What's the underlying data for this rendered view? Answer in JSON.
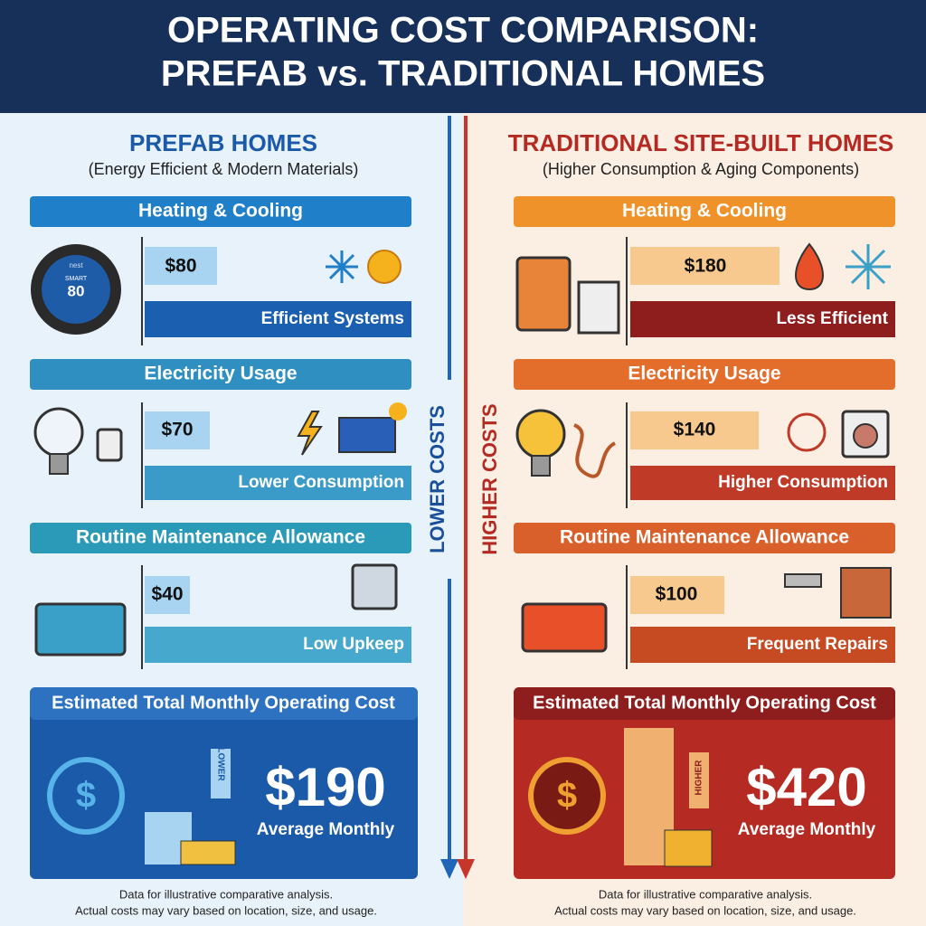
{
  "header": {
    "title_line_1": "OPERATING COST COMPARISON:",
    "title_line_2": "PREFAB vs. TRADITIONAL HOMES"
  },
  "left": {
    "title": "PREFAB HOMES",
    "subtitle": "(Energy Efficient & Modern Materials)",
    "thermostat": {
      "brand": "nest",
      "mode": "SMART",
      "reading": "80"
    },
    "sections": [
      {
        "heading": "Heating & Cooling",
        "cost": "$80",
        "note": "Efficient Systems"
      },
      {
        "heading": "Electricity Usage",
        "cost": "$70",
        "note": "Lower Consumption"
      },
      {
        "heading": "Routine Maintenance Allowance",
        "cost": "$40",
        "note": "Low Upkeep"
      }
    ],
    "total": {
      "heading": "Estimated Total Monthly Operating Cost",
      "arrow_label": "LOWER",
      "amount": "$190",
      "caption": "Average Monthly"
    },
    "footer": {
      "line_1": "Data for illustrative comparative analysis.",
      "line_2": "Actual costs may vary based on location, size, and usage."
    }
  },
  "right": {
    "title": "TRADITIONAL SITE-BUILT HOMES",
    "subtitle": "(Higher Consumption & Aging Components)",
    "sections": [
      {
        "heading": "Heating & Cooling",
        "cost": "$180",
        "note": "Less Efficient"
      },
      {
        "heading": "Electricity Usage",
        "cost": "$140",
        "note": "Higher Consumption"
      },
      {
        "heading": "Routine Maintenance Allowance",
        "cost": "$100",
        "note": "Frequent Repairs"
      }
    ],
    "total": {
      "heading": "Estimated Total Monthly Operating Cost",
      "arrow_label": "HIGHER",
      "amount": "$420",
      "caption": "Average Monthly"
    },
    "footer": {
      "line_1": "Data for illustrative comparative analysis.",
      "line_2": "Actual costs may vary based on location, size, and usage."
    }
  },
  "divider": {
    "left_label": "LOWER COSTS",
    "right_label": "HIGHER COSTS"
  }
}
